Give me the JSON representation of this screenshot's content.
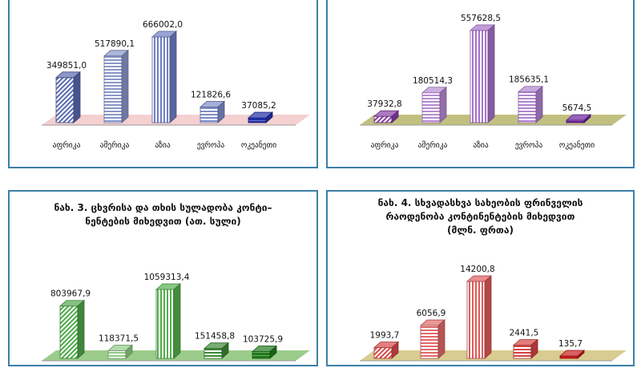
{
  "chart_data": [
    {
      "type": "bar",
      "title": "",
      "categories": [
        "აფრიკა",
        "ამერიკა",
        "აზია",
        "ევროპა",
        "ოკეანეთი"
      ],
      "values": [
        349851.0,
        517890.1,
        666002.0,
        121826.6,
        37085.2
      ],
      "value_labels": [
        "349851,0",
        "517890,1",
        "666002,0",
        "121826,6",
        "37085,2"
      ],
      "colors": [
        "#5a6ab0",
        "#8a96cc",
        "#6f7fc4",
        "#7d8ccb",
        "#1f2fa8"
      ],
      "floor_color": "#f4d0d0",
      "ylim": [
        0,
        666002
      ]
    },
    {
      "type": "bar",
      "title": "",
      "categories": [
        "აფრიკა",
        "ამერიკა",
        "აზია",
        "ევროპა",
        "ოკეანეთი"
      ],
      "values": [
        37932.8,
        180514.3,
        557628.5,
        185635.1,
        5674.5
      ],
      "value_labels": [
        "37932,8",
        "180514,3",
        "557628,5",
        "185635,1",
        "5674,5"
      ],
      "colors": [
        "#8a3fa8",
        "#b88ad4",
        "#a872cc",
        "#b283d2",
        "#6a1fa0"
      ],
      "floor_color": "#c2c080",
      "ylim": [
        0,
        557628.5
      ]
    },
    {
      "type": "bar",
      "title_lines": [
        "ნახ. 3. ცხვრისა და თხის სულადობა კონტი–",
        "ნენტების მიხედვით (ათ. სული)"
      ],
      "categories": [
        "",
        "",
        "",
        "",
        ""
      ],
      "values": [
        803967.9,
        118371.5,
        1059313.4,
        151458.8,
        103725.9
      ],
      "value_labels": [
        "803967,9",
        "118371,5",
        "1059313,4",
        "151458,8",
        "103725,9"
      ],
      "colors": [
        "#4fa84a",
        "#8fca86",
        "#54b04c",
        "#3c8a36",
        "#1f7a1a"
      ],
      "floor_color": "#9ccc8c",
      "ylim": [
        0,
        1059313.4
      ]
    },
    {
      "type": "bar",
      "title_lines": [
        "ნახ. 4. სხვადასხვა სახეობის ფრინველის",
        "რაოდენობა კონტინენტების მიხედვით",
        "(მლნ. ფრთა)"
      ],
      "categories": [
        "",
        "",
        "",
        "",
        ""
      ],
      "values": [
        1993.7,
        6056.9,
        14200.8,
        2441.5,
        135.7
      ],
      "value_labels": [
        "1993,7",
        "6056,9",
        "14200,8",
        "2441,5",
        "135,7"
      ],
      "colors": [
        "#d84848",
        "#e26a6a",
        "#e05a5a",
        "#d84444",
        "#c81c1c"
      ],
      "floor_color": "#d8cc90",
      "ylim": [
        0,
        14200.8
      ]
    }
  ]
}
